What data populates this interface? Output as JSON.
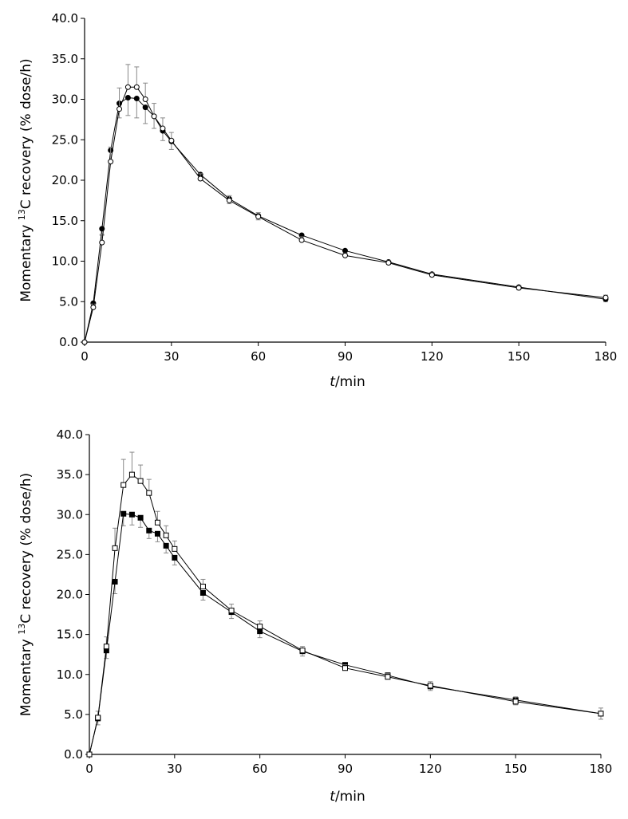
{
  "chart_data": [
    {
      "type": "line",
      "ylabel": {
        "prefix": "Momentary ",
        "sup": "13",
        "suffix": "C recovery (% dose/h)"
      },
      "xlabel": {
        "var": "t",
        "unit": "/min"
      },
      "xlim": [
        0,
        180
      ],
      "ylim": [
        0,
        40
      ],
      "xticks": [
        "0",
        "30",
        "60",
        "90",
        "120",
        "150",
        "180"
      ],
      "yticks": [
        "0.0",
        "5.0",
        "10.0",
        "15.0",
        "20.0",
        "25.0",
        "30.0",
        "35.0",
        "40.0"
      ],
      "series": [
        {
          "marker": "circle-filled",
          "color": "#000000",
          "x": [
            0,
            3,
            6,
            9,
            12,
            15,
            18,
            21,
            24,
            27,
            30,
            40,
            50,
            60,
            75,
            90,
            105,
            120,
            150,
            180
          ],
          "y": [
            0,
            4.8,
            14.0,
            23.7,
            29.5,
            30.2,
            30.1,
            29.0,
            27.9,
            26.1,
            24.8,
            20.7,
            17.7,
            15.6,
            13.2,
            11.3,
            9.9,
            8.4,
            6.8,
            5.3
          ],
          "err": [
            0,
            0.4,
            0.8,
            1.5,
            1.8,
            2.2,
            2.4,
            2.0,
            1.5,
            1.2,
            1.0,
            0.6,
            0.6,
            0.5,
            0.4,
            0.3,
            0.3,
            0.3,
            0.3,
            0.3
          ]
        },
        {
          "marker": "circle-open",
          "color": "#000000",
          "x": [
            0,
            3,
            6,
            9,
            12,
            15,
            18,
            21,
            24,
            27,
            30,
            40,
            50,
            60,
            75,
            90,
            105,
            120,
            150,
            180
          ],
          "y": [
            0,
            4.3,
            12.3,
            22.3,
            28.8,
            31.5,
            31.5,
            30.0,
            27.9,
            26.4,
            24.9,
            20.2,
            17.5,
            15.5,
            12.6,
            10.7,
            9.8,
            8.3,
            6.7,
            5.5
          ],
          "err": [
            0,
            0.4,
            1.0,
            1.8,
            2.6,
            2.8,
            2.5,
            2.0,
            1.6,
            1.3,
            1.0,
            0.6,
            0.6,
            0.5,
            0.4,
            0.3,
            0.3,
            0.3,
            0.3,
            0.3
          ]
        }
      ]
    },
    {
      "type": "line",
      "ylabel": {
        "prefix": "Momentary ",
        "sup": "13",
        "suffix": "C recovery (% dose/h)"
      },
      "xlabel": {
        "var": "t",
        "unit": "/min"
      },
      "xlim": [
        0,
        180
      ],
      "ylim": [
        0,
        40
      ],
      "xticks": [
        "0",
        "30",
        "60",
        "90",
        "120",
        "150",
        "180"
      ],
      "yticks": [
        "0.0",
        "5.0",
        "10.0",
        "15.0",
        "20.0",
        "25.0",
        "30.0",
        "35.0",
        "40.0"
      ],
      "series": [
        {
          "marker": "square-filled",
          "color": "#000000",
          "x": [
            0,
            3,
            6,
            9,
            12,
            15,
            18,
            21,
            24,
            27,
            30,
            40,
            50,
            60,
            75,
            90,
            105,
            120,
            150,
            180
          ],
          "y": [
            0,
            4.5,
            13.0,
            21.6,
            30.1,
            30.0,
            29.6,
            28.0,
            27.6,
            26.1,
            24.6,
            20.2,
            17.8,
            15.4,
            12.9,
            11.2,
            9.9,
            8.5,
            6.8,
            5.1
          ],
          "err": [
            0,
            0.8,
            1.0,
            1.5,
            1.5,
            1.3,
            1.2,
            1.0,
            1.0,
            0.9,
            0.9,
            0.9,
            0.8,
            0.8,
            0.6,
            0.4,
            0.5,
            0.5,
            0.6,
            0.7
          ]
        },
        {
          "marker": "square-open",
          "color": "#000000",
          "x": [
            0,
            3,
            6,
            9,
            12,
            15,
            18,
            21,
            24,
            27,
            30,
            40,
            50,
            60,
            75,
            90,
            105,
            120,
            150,
            180
          ],
          "y": [
            0,
            4.6,
            13.5,
            25.8,
            33.7,
            35.0,
            34.2,
            32.7,
            29.0,
            27.4,
            25.7,
            21.0,
            18.0,
            16.0,
            13.0,
            10.8,
            9.7,
            8.6,
            6.6,
            5.1
          ],
          "err": [
            0,
            0.8,
            1.2,
            2.5,
            3.2,
            2.8,
            2.0,
            1.7,
            1.4,
            1.2,
            1.0,
            0.9,
            0.8,
            0.7,
            0.5,
            0.4,
            0.4,
            0.5,
            0.6,
            0.7
          ]
        }
      ]
    }
  ]
}
